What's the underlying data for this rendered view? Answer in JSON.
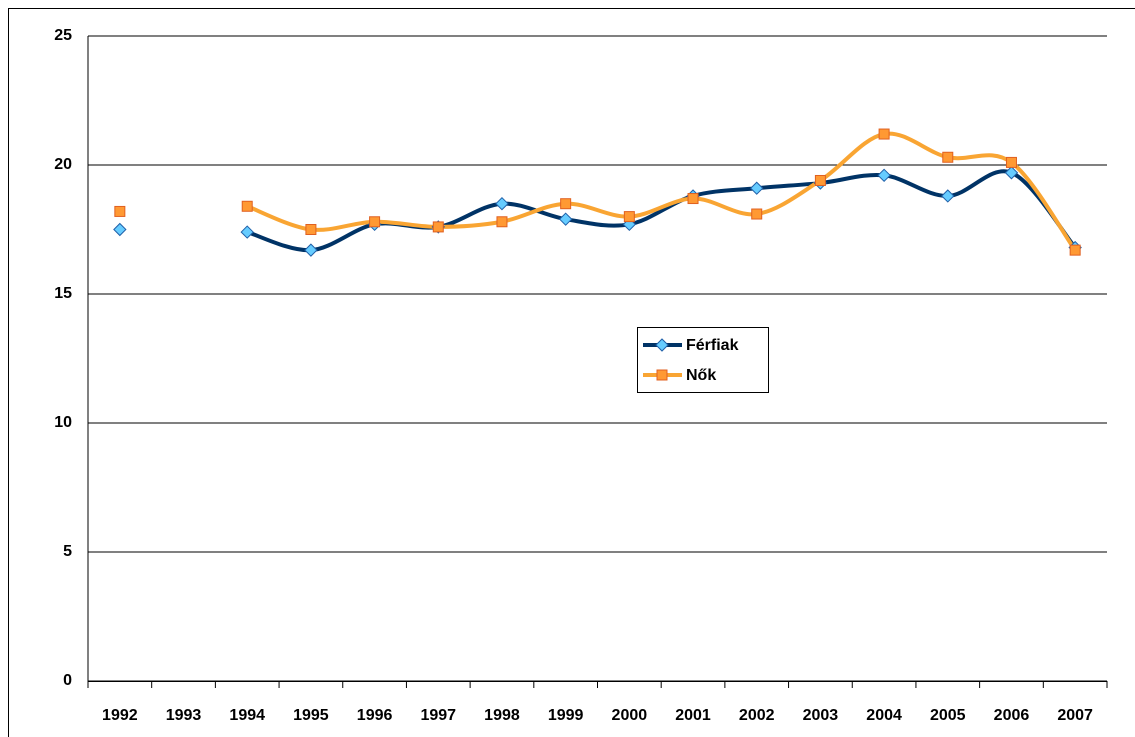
{
  "chart_data": {
    "type": "line",
    "categories": [
      "1992",
      "1993",
      "1994",
      "1995",
      "1996",
      "1997",
      "1998",
      "1999",
      "2000",
      "2001",
      "2002",
      "2003",
      "2004",
      "2005",
      "2006",
      "2007"
    ],
    "series": [
      {
        "name": "Férfiak",
        "color": "#003366",
        "marker_color": "#66ccff",
        "marker": "diamond",
        "values": [
          17.5,
          null,
          17.4,
          16.7,
          17.7,
          17.6,
          18.5,
          17.9,
          17.7,
          18.8,
          19.1,
          19.3,
          19.6,
          18.8,
          19.7,
          16.8
        ]
      },
      {
        "name": "Nők",
        "color": "#f9a533",
        "marker_color": "#ff9933",
        "marker": "square",
        "values": [
          18.2,
          null,
          18.4,
          17.5,
          17.8,
          17.6,
          17.8,
          18.5,
          18.0,
          18.7,
          18.1,
          19.4,
          21.2,
          20.3,
          20.1,
          16.7
        ]
      }
    ],
    "ylim": [
      0,
      25
    ],
    "yticks": [
      0,
      5,
      10,
      15,
      20,
      25
    ],
    "grid": true,
    "smooth": true
  }
}
